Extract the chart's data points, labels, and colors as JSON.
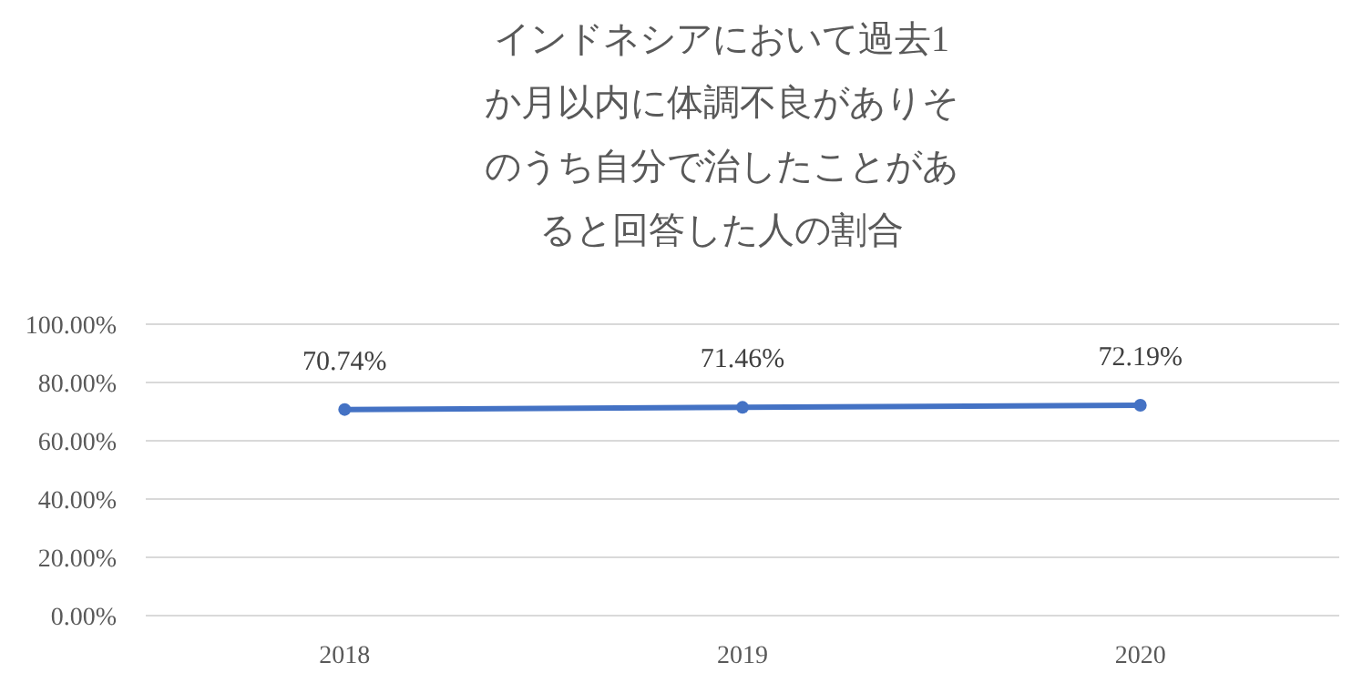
{
  "chart_data": {
    "type": "line",
    "title": "インドネシアにおいて過去1か月以内に体調不良がありそのうち自分で治したことがあると回答した人の割合",
    "categories": [
      "2018",
      "2019",
      "2020"
    ],
    "series": [
      {
        "color": "#4472c4",
        "values": [
          70.74,
          71.46,
          72.19
        ],
        "value_labels": [
          "70.74%",
          "71.46%",
          "72.19%"
        ]
      }
    ],
    "ylim": [
      0,
      100
    ],
    "yticks": [
      {
        "value": 0,
        "label": "0.00%"
      },
      {
        "value": 20,
        "label": "20.00%"
      },
      {
        "value": 40,
        "label": "40.00%"
      },
      {
        "value": 60,
        "label": "60.00%"
      },
      {
        "value": 80,
        "label": "80.00%"
      },
      {
        "value": 100,
        "label": "100.00%"
      }
    ],
    "grid": "y",
    "marker": "circle",
    "line_style": "solid"
  }
}
